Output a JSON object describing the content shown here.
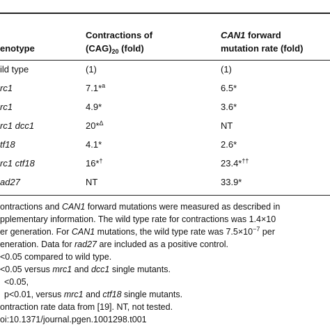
{
  "table": {
    "header": [
      [
        "enotype"
      ],
      [
        "Contractions of",
        "(CAG)",
        "20",
        " (fold)"
      ],
      [
        "CAN1",
        " forward",
        "mutation rate (fold)"
      ]
    ],
    "rows": [
      [
        [
          "ild type"
        ],
        [
          "(1)"
        ],
        [
          "(1)"
        ]
      ],
      [
        [
          "rc1"
        ],
        [
          "7.1*",
          "a"
        ],
        [
          "6.5*"
        ]
      ],
      [
        [
          "rc1"
        ],
        [
          "4.9*"
        ],
        [
          "3.6*"
        ]
      ],
      [
        [
          "rc1 dcc1"
        ],
        [
          "20*",
          "Δ"
        ],
        [
          "NT"
        ]
      ],
      [
        [
          "tf18"
        ],
        [
          "4.1*"
        ],
        [
          "2.6*"
        ]
      ],
      [
        [
          "rc1 ctf18"
        ],
        [
          "16*",
          "†"
        ],
        [
          "23.4*",
          "††"
        ]
      ],
      [
        [
          "ad27"
        ],
        [
          "NT"
        ],
        [
          "33.9*"
        ]
      ]
    ]
  },
  "footnotes": [
    [
      "ontractions and ",
      "CAN1",
      " forward mutations were measured as described in"
    ],
    [
      "pplementary information. The wild type rate for contractions was 1.4×10"
    ],
    [
      "er generation. For ",
      "CAN1",
      " mutations, the wild type rate was 7.5×10",
      "−7",
      " per"
    ],
    [
      "eneration. Data for ",
      "rad27",
      " are included as a positive control."
    ],
    [
      "<0.05 compared to wild type."
    ],
    [
      "<0.05 versus ",
      "mrc1",
      " and ",
      "dcc1",
      " single mutants."
    ],
    [
      "<0.05,"
    ],
    [
      "p<0.01, versus ",
      "mrc1",
      " and ",
      "ctf18",
      " single mutants."
    ],
    [
      "ontraction rate data from [19]. NT, not tested."
    ],
    [
      "oi:10.1371/journal.pgen.1001298.t001"
    ]
  ]
}
